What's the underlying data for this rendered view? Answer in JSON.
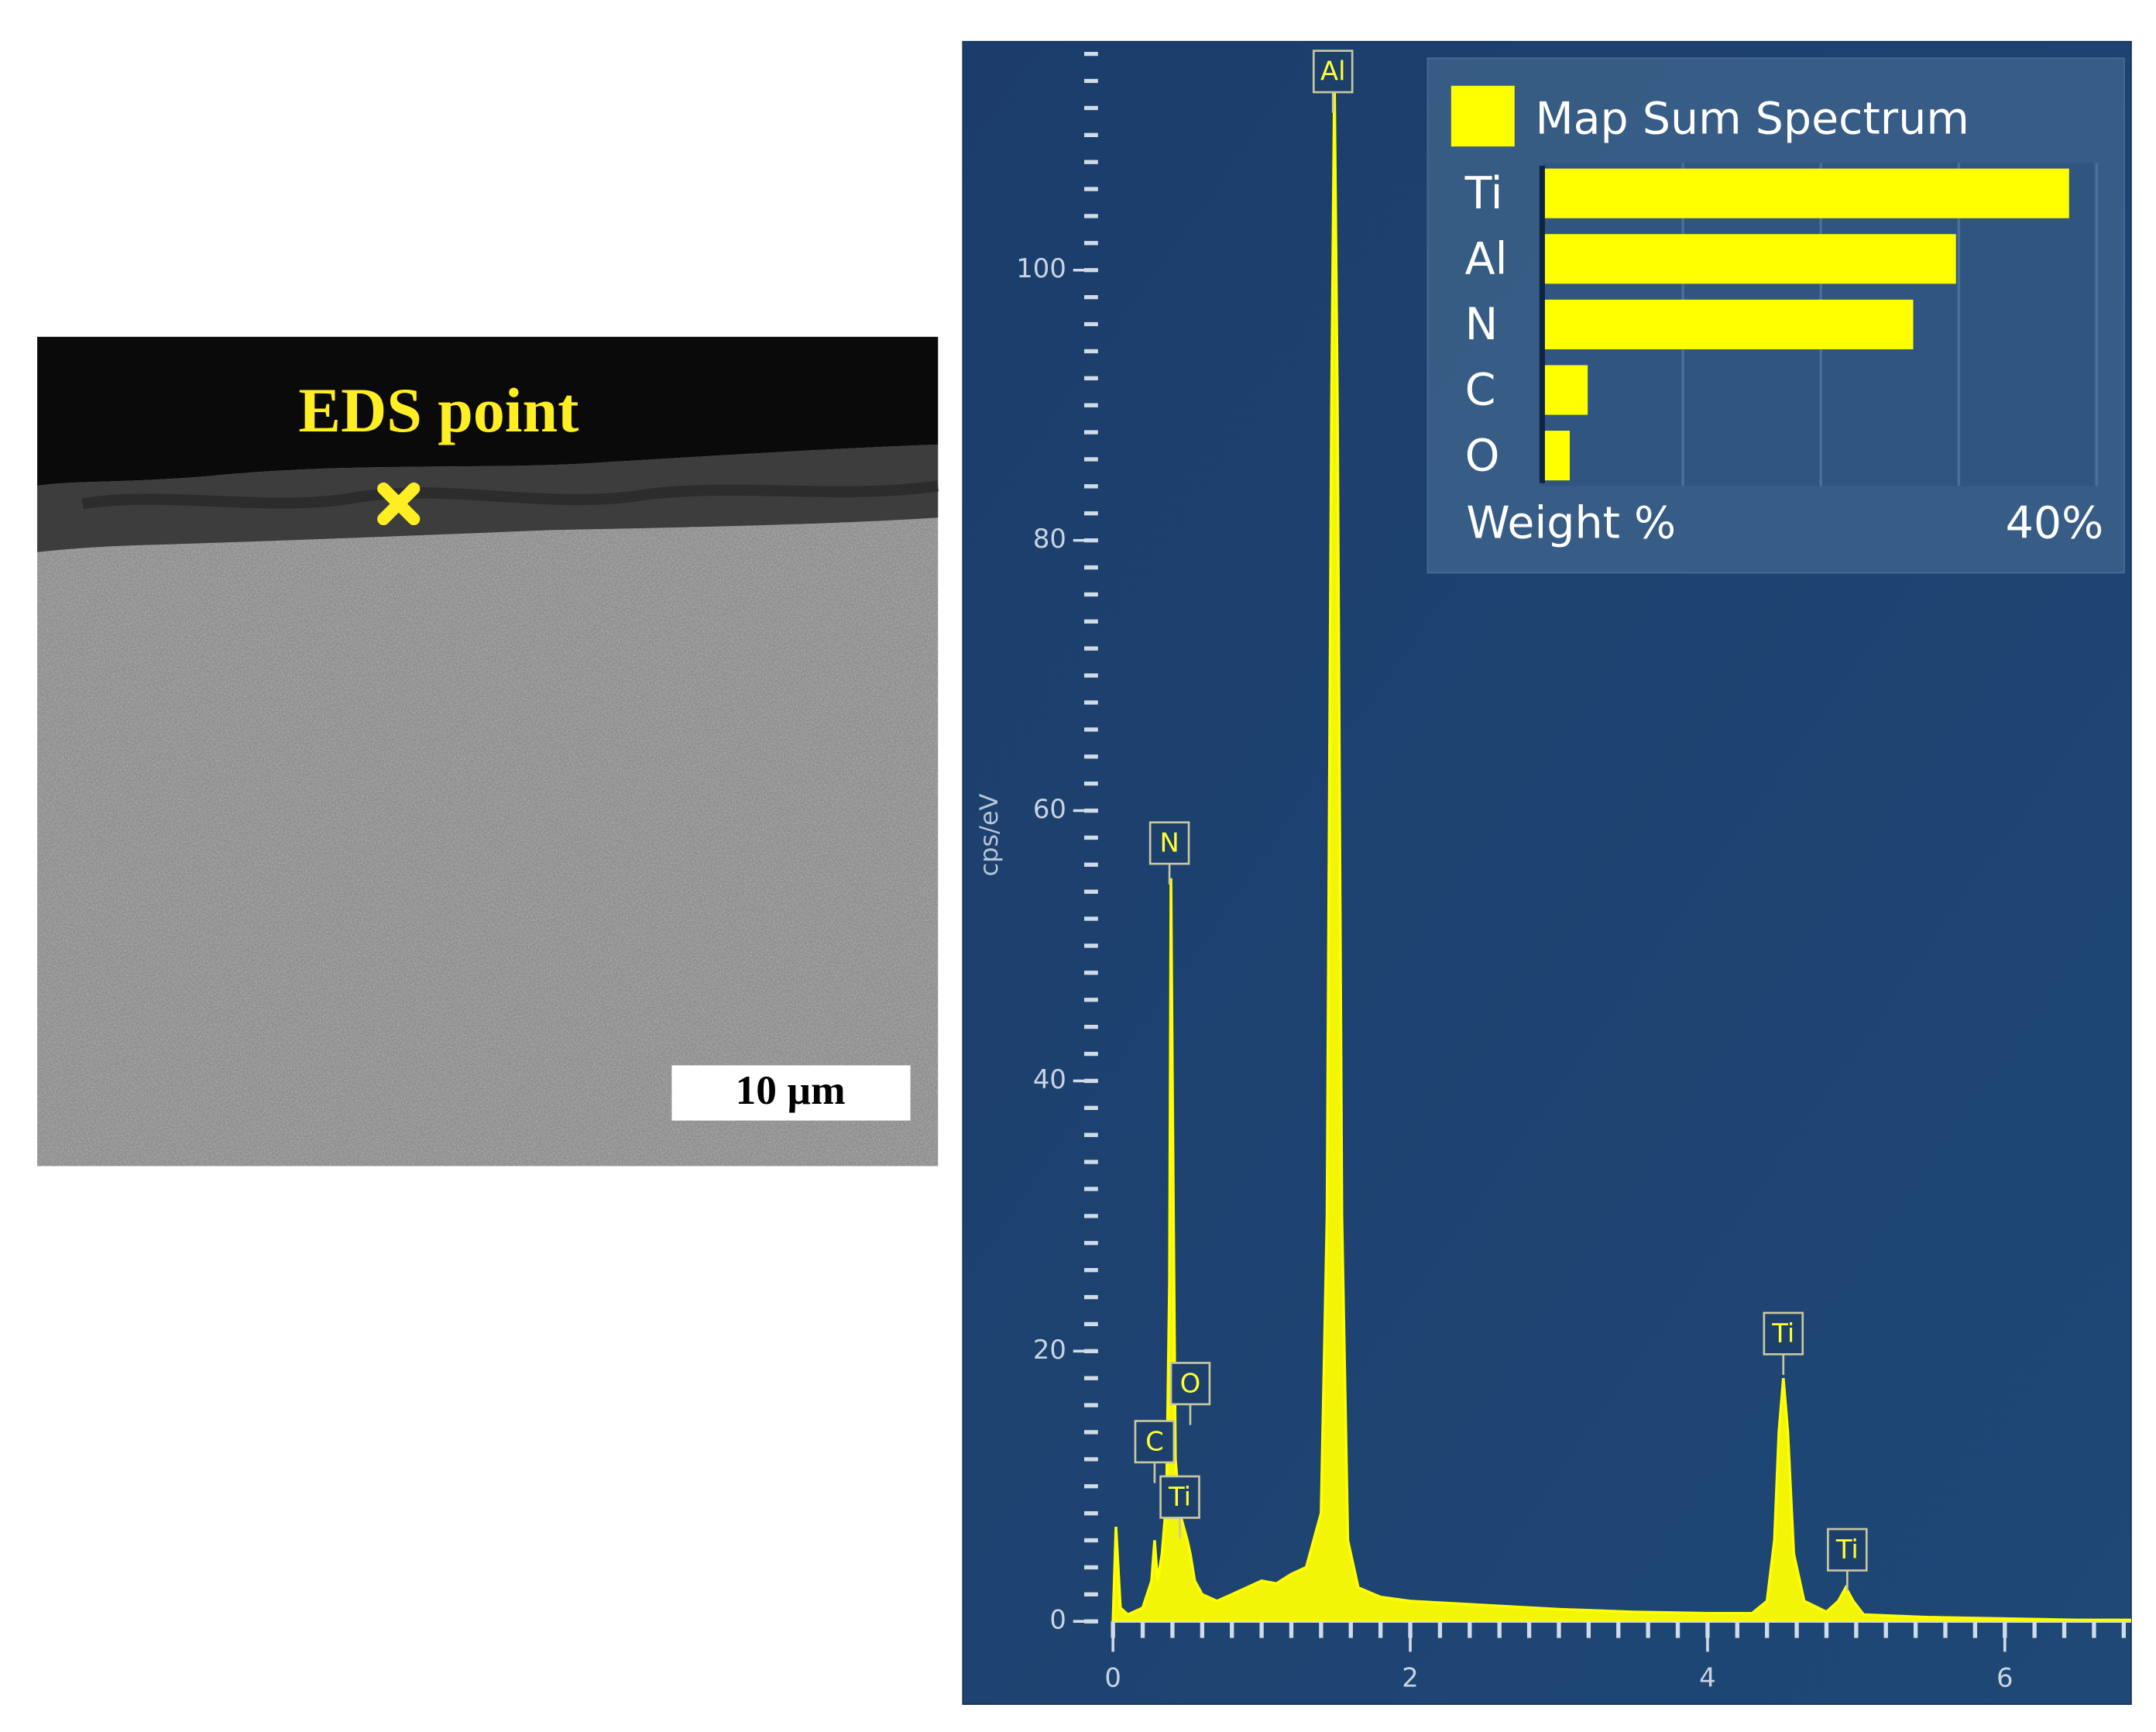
{
  "sem_image": {
    "label": "EDS point",
    "scale_bar": "10 µm"
  },
  "chart_data": [
    {
      "type": "line",
      "ylabel": "cps/eV",
      "x": [
        0.0,
        0.02,
        0.05,
        0.1,
        0.2,
        0.26,
        0.28,
        0.3,
        0.33,
        0.36,
        0.38,
        0.39,
        0.4,
        0.42,
        0.45,
        0.5,
        0.52,
        0.55,
        0.6,
        0.7,
        0.8,
        0.9,
        1.0,
        1.1,
        1.2,
        1.3,
        1.4,
        1.44,
        1.47,
        1.49,
        1.51,
        1.54,
        1.58,
        1.65,
        1.8,
        2.0,
        2.5,
        3.0,
        3.5,
        4.0,
        4.3,
        4.4,
        4.45,
        4.48,
        4.51,
        4.54,
        4.58,
        4.65,
        4.8,
        4.88,
        4.93,
        4.98,
        5.05,
        5.5,
        6.0,
        6.5,
        6.85
      ],
      "series": [
        {
          "name": "Map Sum Spectrum",
          "color": "#ffff00",
          "values": [
            0,
            7,
            1,
            0.5,
            1,
            3,
            6,
            3,
            5,
            9,
            25,
            55,
            40,
            12,
            8,
            6,
            5,
            3,
            2,
            1.5,
            2,
            2.5,
            3,
            2.8,
            3.5,
            4,
            8,
            30,
            90,
            114,
            90,
            30,
            6,
            2.5,
            1.8,
            1.5,
            1.2,
            0.9,
            0.7,
            0.6,
            0.6,
            1.5,
            6,
            14,
            18,
            14,
            5,
            1.5,
            0.7,
            1.5,
            2.5,
            1.5,
            0.5,
            0.3,
            0.2,
            0.1,
            0.1
          ]
        }
      ],
      "xlim": [
        -0.11,
        6.85
      ],
      "xticks": [
        0,
        2,
        4,
        6
      ],
      "ylim": [
        0,
        116.4
      ],
      "yticks": [
        0,
        20,
        40,
        60,
        80,
        100
      ],
      "annotations": [
        {
          "label": "Al",
          "x": 1.48,
          "y": 114.7
        },
        {
          "label": "N",
          "x": 0.38,
          "y": 57.6
        },
        {
          "label": "O",
          "x": 0.52,
          "y": 17.6
        },
        {
          "label": "C",
          "x": 0.28,
          "y": 13.3
        },
        {
          "label": "Ti",
          "x": 0.45,
          "y": 9.2
        },
        {
          "label": "Ti",
          "x": 4.51,
          "y": 21.3
        },
        {
          "label": "Ti",
          "x": 4.94,
          "y": 5.3
        }
      ]
    },
    {
      "type": "bar",
      "orientation": "horizontal",
      "categories": [
        "Ti",
        "Al",
        "N",
        "C",
        "O"
      ],
      "series": [
        {
          "name": "Map Sum Spectrum",
          "color": "#ffff00",
          "values": [
            38,
            29.8,
            26.7,
            3.1,
            1.8
          ]
        }
      ],
      "xlabel": "Weight %",
      "xlim": [
        0,
        40
      ],
      "xticks": [
        {
          "value": 40,
          "label": "40%"
        }
      ],
      "gridlines": [
        10,
        20,
        30,
        40
      ]
    }
  ]
}
